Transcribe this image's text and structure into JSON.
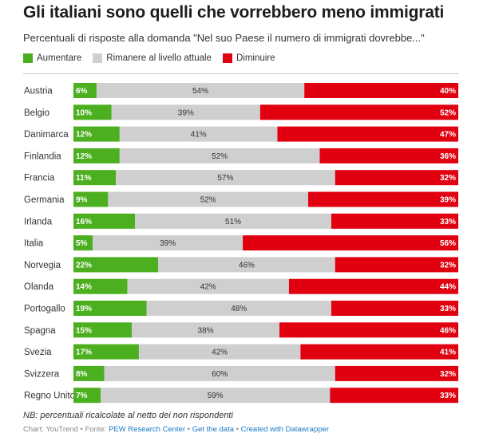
{
  "title": "Gli italiani sono quelli che vorrebbero meno immigrati",
  "subtitle": "Percentuali di risposte alla domanda \"Nel suo Paese il numero di immigrati dovrebbe...\"",
  "colors": {
    "aumentare": "#4caf1f",
    "rimanere": "#cfcfcf",
    "diminuire": "#e0000f"
  },
  "legend": [
    {
      "label": "Aumentare",
      "color": "#4caf1f"
    },
    {
      "label": "Rimanere al livello attuale",
      "color": "#cfcfcf"
    },
    {
      "label": "Diminuire",
      "color": "#e0000f"
    }
  ],
  "chart_data": {
    "type": "bar",
    "orientation": "horizontal",
    "stacked": true,
    "categories": [
      "Austria",
      "Belgio",
      "Danimarca",
      "Finlandia",
      "Francia",
      "Germania",
      "Irlanda",
      "Italia",
      "Norvegia",
      "Olanda",
      "Portogallo",
      "Spagna",
      "Svezia",
      "Svizzera",
      "Regno Unito"
    ],
    "series": [
      {
        "name": "Aumentare",
        "values": [
          6,
          10,
          12,
          12,
          11,
          9,
          16,
          5,
          22,
          14,
          19,
          15,
          17,
          8,
          7
        ]
      },
      {
        "name": "Rimanere al livello attuale",
        "values": [
          54,
          39,
          41,
          52,
          57,
          52,
          51,
          39,
          46,
          42,
          48,
          38,
          42,
          60,
          59
        ]
      },
      {
        "name": "Diminuire",
        "values": [
          40,
          52,
          47,
          36,
          32,
          39,
          33,
          56,
          32,
          44,
          33,
          46,
          41,
          32,
          33
        ]
      }
    ],
    "value_suffix": "%"
  },
  "note": "NB: percentuali ricalcolate al netto dei non rispondenti",
  "footer": {
    "prefix": "Chart: YouTrend • Fonte: ",
    "source": "PEW Research Center",
    "sep1": " • ",
    "get_data": "Get the data",
    "sep2": " • ",
    "created": "Created with Datawrapper"
  }
}
